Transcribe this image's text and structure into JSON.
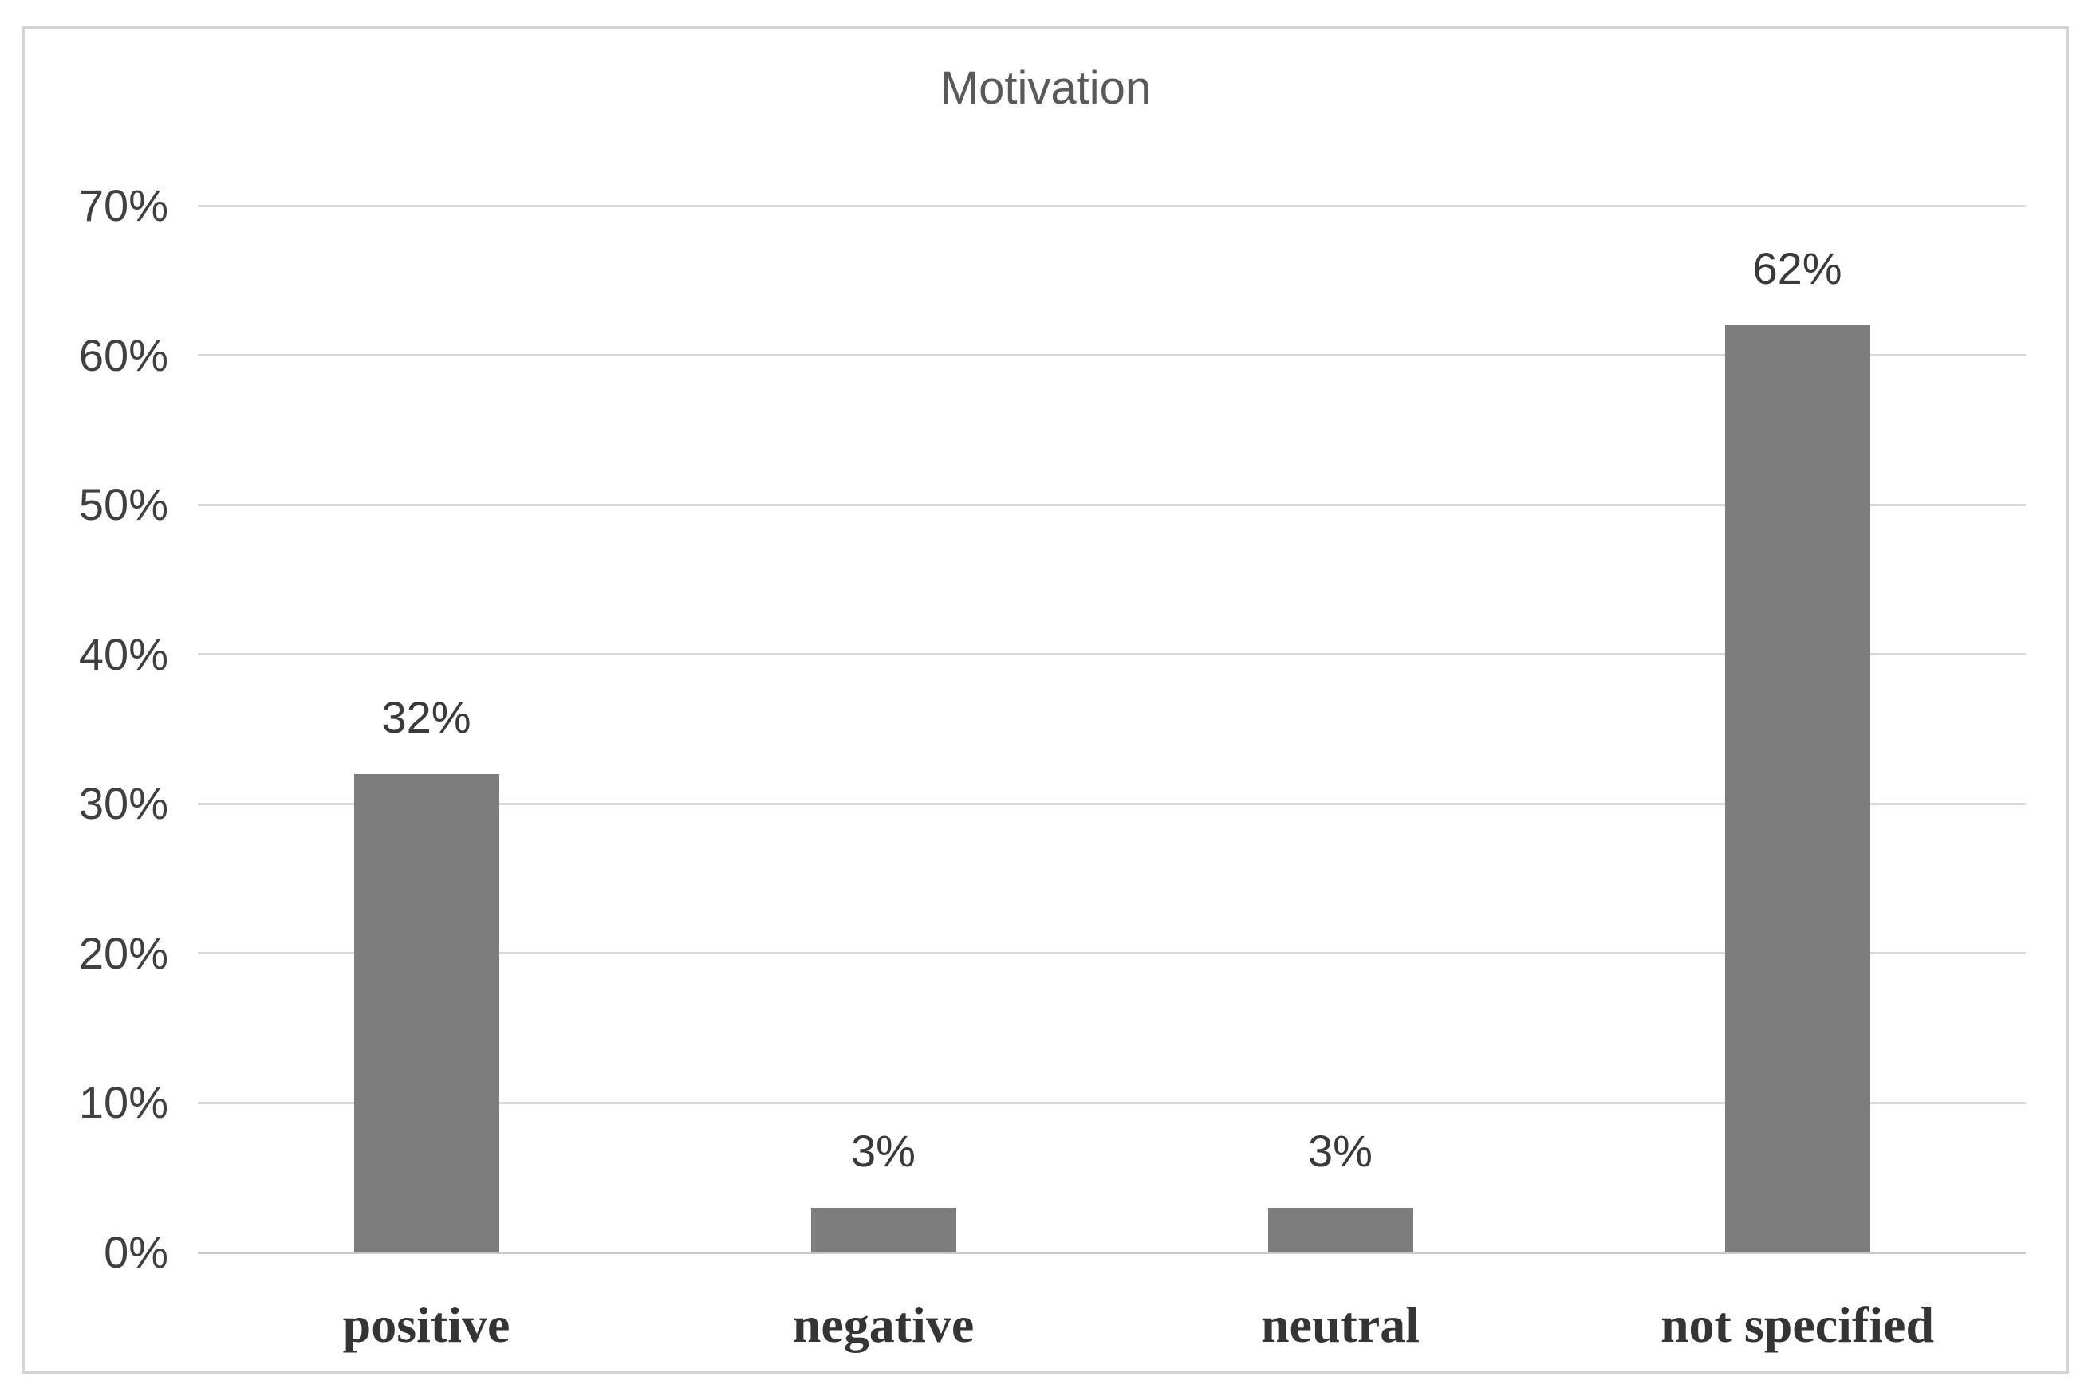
{
  "chart_data": {
    "type": "bar",
    "title": "Motivation",
    "categories": [
      "positive",
      "negative",
      "neutral",
      "not specified"
    ],
    "values": [
      32,
      3,
      3,
      62
    ],
    "data_labels": [
      "32%",
      "3%",
      "3%",
      "62%"
    ],
    "xlabel": "",
    "ylabel": "",
    "ylim": [
      0,
      70
    ],
    "yticks": [
      {
        "label": "0%",
        "value": 0
      },
      {
        "label": "10%",
        "value": 10
      },
      {
        "label": "20%",
        "value": 20
      },
      {
        "label": "30%",
        "value": 30
      },
      {
        "label": "40%",
        "value": 40
      },
      {
        "label": "50%",
        "value": 50
      },
      {
        "label": "60%",
        "value": 60
      },
      {
        "label": "70%",
        "value": 70
      }
    ],
    "grid": true,
    "legend": false,
    "colors": {
      "bar_color": "#7d7d7d",
      "gridline_color": "#d9d9d9",
      "axis_line_color": "#c9c9c9",
      "frame_border_color": "#d3d3d3",
      "title_color": "#595959",
      "tick_label_color": "#404040",
      "data_label_color": "#3a3a3a",
      "category_label_color": "#343434",
      "background_color": "#ffffff"
    }
  }
}
